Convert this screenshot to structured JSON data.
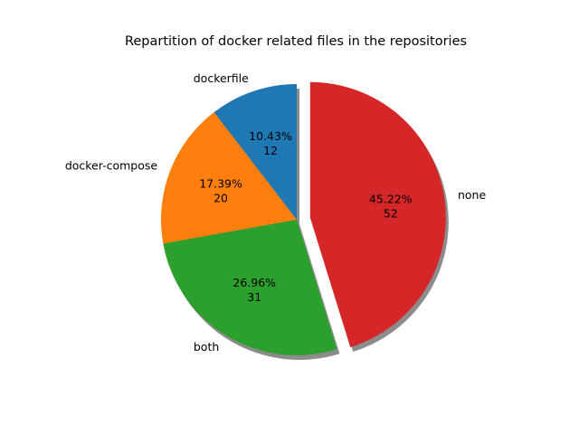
{
  "chart_data": {
    "type": "pie",
    "title": "Repartition of docker related files in the repositories",
    "slices": [
      {
        "label": "dockerfile",
        "value": 12,
        "percent": "10.43%",
        "color": "#1f77b4",
        "exploded": false
      },
      {
        "label": "docker-compose",
        "value": 20,
        "percent": "17.39%",
        "color": "#ff7f0e",
        "exploded": false
      },
      {
        "label": "both",
        "value": 31,
        "percent": "26.96%",
        "color": "#2ca02c",
        "exploded": false
      },
      {
        "label": "none",
        "value": 52,
        "percent": "45.22%",
        "color": "#d62728",
        "exploded": true
      }
    ],
    "start_angle_deg": 90,
    "direction": "counterclockwise",
    "shadow": true,
    "legend": false
  }
}
